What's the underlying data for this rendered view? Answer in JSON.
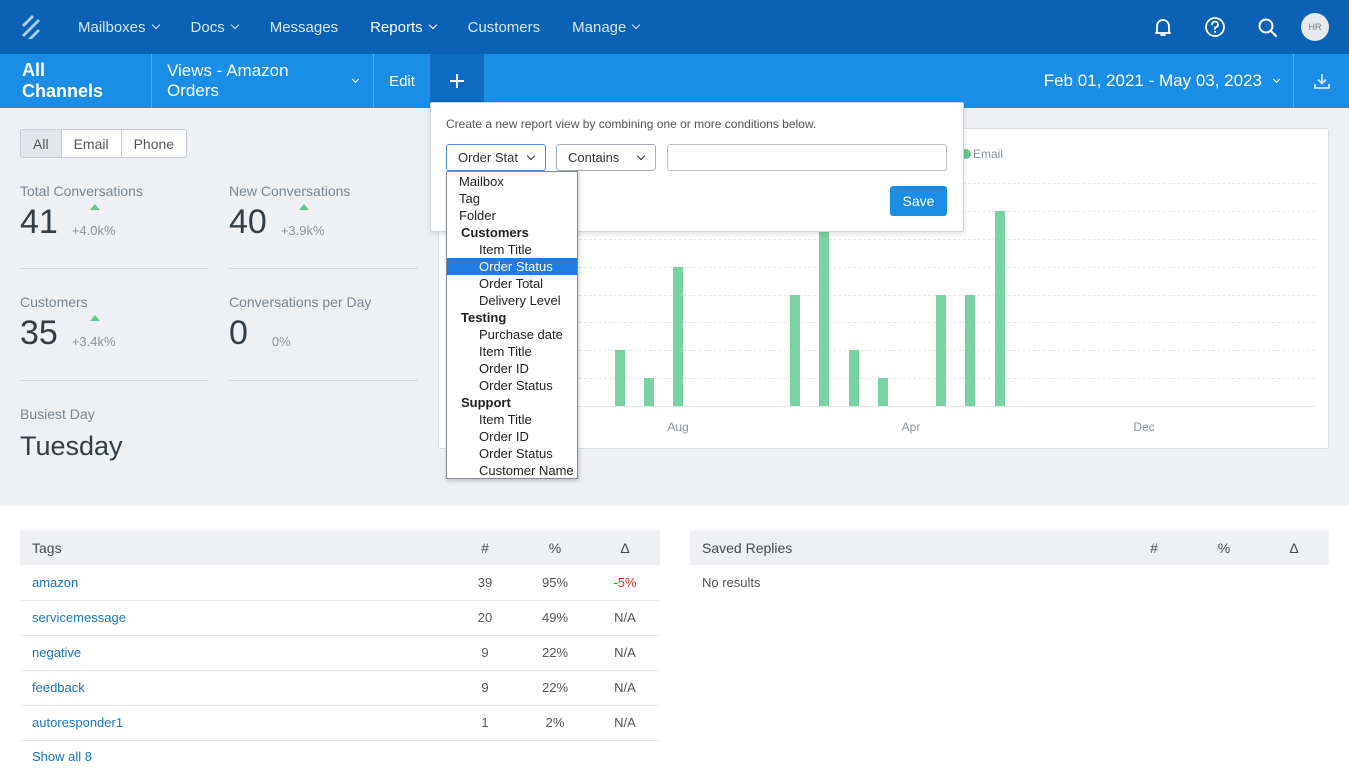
{
  "nav": {
    "items": [
      {
        "label": "Mailboxes",
        "caret": true,
        "active": false
      },
      {
        "label": "Docs",
        "caret": true,
        "active": false
      },
      {
        "label": "Messages",
        "caret": false,
        "active": false
      },
      {
        "label": "Reports",
        "caret": true,
        "active": true
      },
      {
        "label": "Customers",
        "caret": false,
        "active": false
      },
      {
        "label": "Manage",
        "caret": true,
        "active": false
      }
    ],
    "avatar_initials": "HR",
    "icons": [
      "bell-icon",
      "help-icon",
      "search-icon"
    ]
  },
  "subbar": {
    "title": "All Channels",
    "views_label": "Views - Amazon Orders",
    "edit_label": "Edit",
    "plus_label": "+",
    "date_range": "Feb 01, 2021 - May 03, 2023"
  },
  "filter": {
    "options": [
      "All",
      "Email",
      "Phone"
    ],
    "selected": "All"
  },
  "stats": {
    "total_conversations": {
      "label": "Total Conversations",
      "value": "41",
      "change": "+4.0k%"
    },
    "new_conversations": {
      "label": "New Conversations",
      "value": "40",
      "change": "+3.9k%"
    },
    "customers": {
      "label": "Customers",
      "value": "35",
      "change": "+3.4k%"
    },
    "conversations_per_day": {
      "label": "Conversations per Day",
      "value": "0",
      "change": "0%"
    },
    "busiest_day": {
      "label": "Busiest Day",
      "value": "Tuesday"
    }
  },
  "chart_data": {
    "type": "bar",
    "legend": "Email",
    "x_tick_labels": [
      "Aug",
      "Apr",
      "Dec"
    ],
    "series": [
      {
        "name": "Email",
        "values": [
          2,
          1,
          5,
          0,
          0,
          0,
          4,
          7,
          2,
          1,
          0,
          4,
          4,
          7
        ]
      }
    ],
    "ylim": [
      0,
      8
    ],
    "grid": true,
    "accent_color": "#79d3a0"
  },
  "popover": {
    "hint": "Create a new report view by combining one or more conditions below.",
    "field_select": "Order Stat",
    "operator_select": "Contains",
    "value_input": "",
    "save_label": "Save"
  },
  "dropdown": {
    "items": [
      {
        "label": "Mailbox",
        "kind": "top"
      },
      {
        "label": "Tag",
        "kind": "top"
      },
      {
        "label": "Folder",
        "kind": "top"
      },
      {
        "label": "Customers",
        "kind": "group"
      },
      {
        "label": "Item Title",
        "kind": "child"
      },
      {
        "label": "Order Status",
        "kind": "child",
        "highlighted": true
      },
      {
        "label": "Order Total",
        "kind": "child"
      },
      {
        "label": "Delivery Level",
        "kind": "child"
      },
      {
        "label": "Testing",
        "kind": "group"
      },
      {
        "label": "Purchase date",
        "kind": "child"
      },
      {
        "label": "Item Title",
        "kind": "child"
      },
      {
        "label": "Order ID",
        "kind": "child"
      },
      {
        "label": "Order Status",
        "kind": "child"
      },
      {
        "label": "Support",
        "kind": "group"
      },
      {
        "label": "Item Title",
        "kind": "child"
      },
      {
        "label": "Order ID",
        "kind": "child"
      },
      {
        "label": "Order Status",
        "kind": "child"
      },
      {
        "label": "Customer Name",
        "kind": "child"
      }
    ]
  },
  "tags_table": {
    "headers": [
      "Tags",
      "#",
      "%",
      "Δ"
    ],
    "rows": [
      {
        "tag": "amazon",
        "count": "39",
        "pct": "95%",
        "delta": "-5%",
        "negative": true
      },
      {
        "tag": "servicemessage",
        "count": "20",
        "pct": "49%",
        "delta": "N/A"
      },
      {
        "tag": "negative",
        "count": "9",
        "pct": "22%",
        "delta": "N/A"
      },
      {
        "tag": "feedback",
        "count": "9",
        "pct": "22%",
        "delta": "N/A"
      },
      {
        "tag": "autoresponder1",
        "count": "1",
        "pct": "2%",
        "delta": "N/A"
      }
    ],
    "show_all": "Show all 8"
  },
  "replies_table": {
    "headers": [
      "Saved Replies",
      "#",
      "%",
      "Δ"
    ],
    "empty": "No results"
  }
}
